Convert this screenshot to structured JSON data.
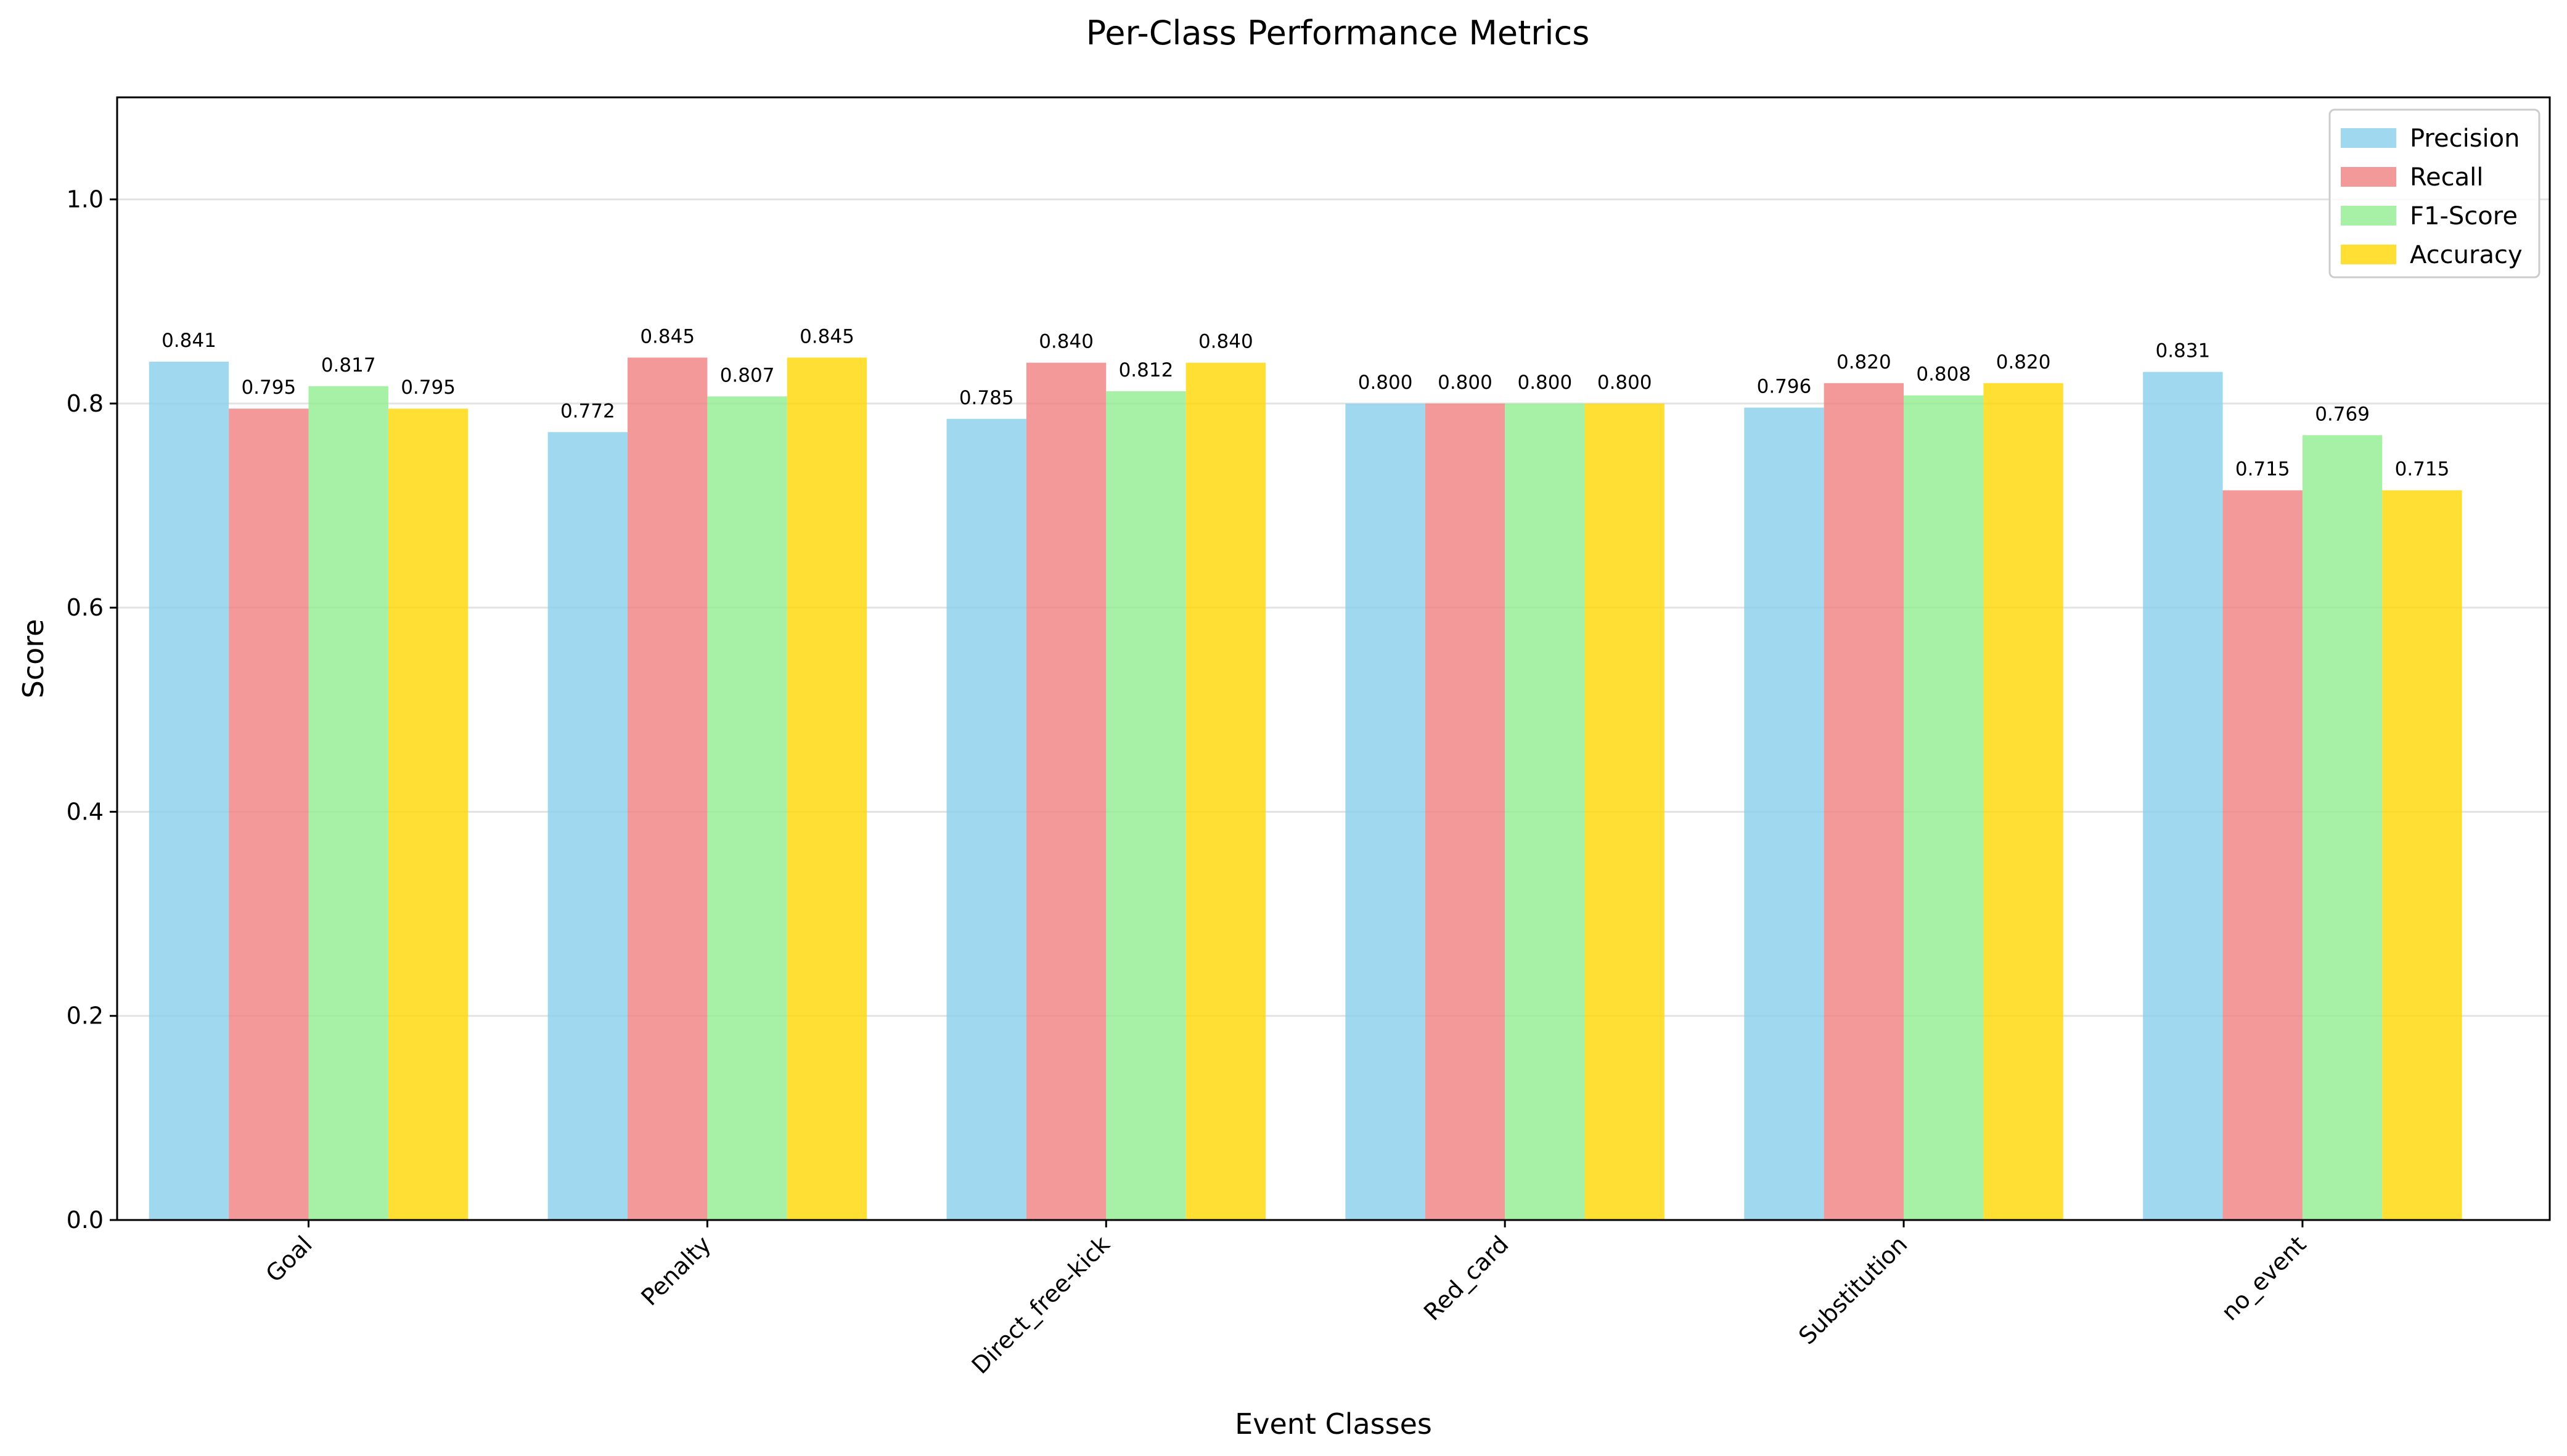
{
  "chart_data": {
    "type": "bar",
    "title": "Per-Class Performance Metrics",
    "xlabel": "Event Classes",
    "ylabel": "Score",
    "ylim": [
      0,
      1.1
    ],
    "yticks": [
      0.0,
      0.2,
      0.4,
      0.6,
      0.8,
      1.0
    ],
    "ytick_labels": [
      "0.0",
      "0.2",
      "0.4",
      "0.6",
      "0.8",
      "1.0"
    ],
    "grid": "y",
    "legend_position": "top-right",
    "categories": [
      "Goal",
      "Penalty",
      "Direct_free-kick",
      "Red_card",
      "Substitution",
      "no_event"
    ],
    "series": [
      {
        "name": "Precision",
        "color": "#87ceeb",
        "values": [
          0.841,
          0.772,
          0.785,
          0.8,
          0.796,
          0.831
        ],
        "labels": [
          "0.841",
          "0.772",
          "0.785",
          "0.800",
          "0.796",
          "0.831"
        ]
      },
      {
        "name": "Recall",
        "color": "#f08080",
        "values": [
          0.795,
          0.845,
          0.84,
          0.8,
          0.82,
          0.715
        ],
        "labels": [
          "0.795",
          "0.845",
          "0.840",
          "0.800",
          "0.820",
          "0.715"
        ]
      },
      {
        "name": "F1-Score",
        "color": "#90ee90",
        "values": [
          0.817,
          0.807,
          0.812,
          0.8,
          0.808,
          0.769
        ],
        "labels": [
          "0.817",
          "0.807",
          "0.812",
          "0.800",
          "0.808",
          "0.769"
        ]
      },
      {
        "name": "Accuracy",
        "color": "#ffd700",
        "values": [
          0.795,
          0.845,
          0.84,
          0.8,
          0.82,
          0.715
        ],
        "labels": [
          "0.795",
          "0.845",
          "0.840",
          "0.800",
          "0.820",
          "0.715"
        ]
      }
    ]
  }
}
